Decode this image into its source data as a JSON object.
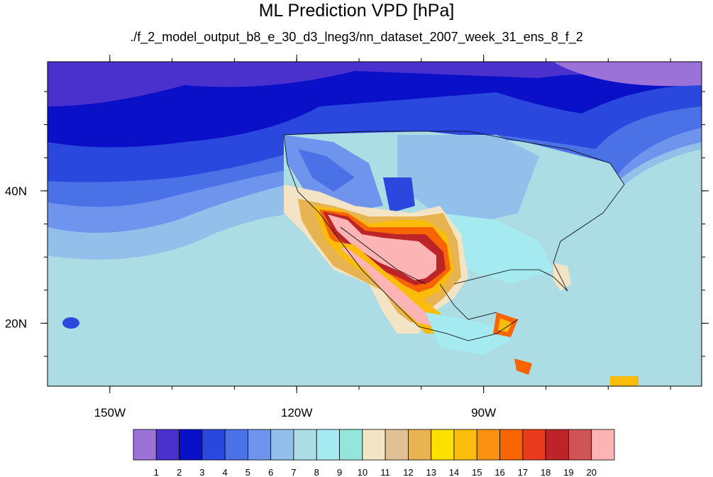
{
  "title": "ML Prediction VPD [hPa]",
  "subtitle": "./f_2_model_output_b8_e_30_d3_lneg3/nn_dataset_2007_week_31_ens_8_f_2",
  "map": {
    "lon_range": [
      -160,
      -55
    ],
    "lat_range": [
      10.5,
      59.5
    ],
    "x_ticks": [
      {
        "lon": -150,
        "label": "150W"
      },
      {
        "lon": -120,
        "label": "120W"
      },
      {
        "lon": -90,
        "label": "90W"
      }
    ],
    "y_ticks": [
      {
        "lat": 40,
        "label": "40N"
      },
      {
        "lat": 20,
        "label": "20N"
      }
    ]
  },
  "colorbar": {
    "colors": [
      "#9a72d8",
      "#4a30cc",
      "#0a10c8",
      "#2a48de",
      "#4a72e6",
      "#6e94ee",
      "#92c0ea",
      "#acdce4",
      "#a4eaf0",
      "#94e6da",
      "#f2e4c4",
      "#e0c094",
      "#e8b452",
      "#fce000",
      "#fcbc0c",
      "#fc9010",
      "#f86400",
      "#e83c1c",
      "#bc2428",
      "#d05454",
      "#fcb4b4"
    ],
    "labels": [
      "1",
      "2",
      "3",
      "4",
      "5",
      "6",
      "7",
      "8",
      "9",
      "10",
      "11",
      "12",
      "13",
      "14",
      "15",
      "16",
      "17",
      "18",
      "19",
      "20"
    ]
  }
}
